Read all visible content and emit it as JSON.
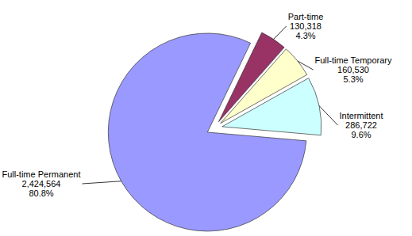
{
  "chart_data": {
    "type": "pie",
    "categories": [
      "Full-time Permanent",
      "Part-time",
      "Full-time Temporary",
      "Intermittent"
    ],
    "values": [
      2424564,
      130318,
      160530,
      286722
    ],
    "value_labels": [
      "2,424,564",
      "130,318",
      "160,530",
      "286,722"
    ],
    "percent_labels": [
      "80.8%",
      "4.3%",
      "5.3%",
      "9.6%"
    ],
    "colors": [
      "#9999ff",
      "#993366",
      "#ffffcc",
      "#ccffff"
    ],
    "data_labels": true
  }
}
